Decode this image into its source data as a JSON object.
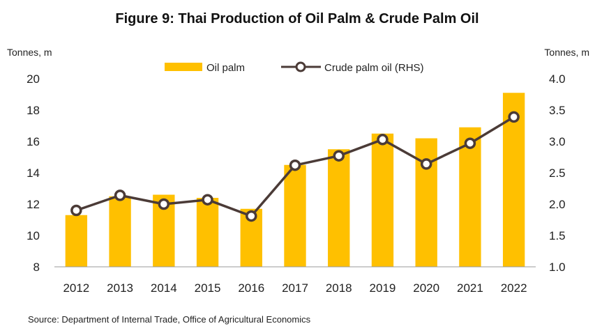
{
  "chart_data": {
    "type": "bar+line",
    "title": "Figure 9: Thai Production  of Oil Palm & Crude Palm Oil",
    "left_axis_label": "Tonnes, m",
    "right_axis_label": "Tonnes, m",
    "categories": [
      "2012",
      "2013",
      "2014",
      "2015",
      "2016",
      "2017",
      "2018",
      "2019",
      "2020",
      "2021",
      "2022"
    ],
    "series": [
      {
        "name": "Oil palm",
        "type": "bar",
        "axis": "left",
        "color": "#FFC000",
        "values": [
          11.3,
          12.5,
          12.6,
          12.4,
          11.7,
          14.5,
          15.5,
          16.5,
          16.2,
          16.9,
          19.1
        ]
      },
      {
        "name": "Crude palm oil (RHS)",
        "type": "line",
        "axis": "right",
        "color": "#4B3B37",
        "values": [
          1.9,
          2.14,
          2.0,
          2.07,
          1.81,
          2.62,
          2.77,
          3.03,
          2.64,
          2.97,
          3.39
        ]
      }
    ],
    "ylim_left": [
      8,
      20
    ],
    "yticks_left": [
      8,
      10,
      12,
      14,
      16,
      18,
      20
    ],
    "ylim_right": [
      1.0,
      4.0
    ],
    "yticks_right": [
      "1.0",
      "1.5",
      "2.0",
      "2.5",
      "3.0",
      "3.5",
      "4.0"
    ],
    "grid": false,
    "legend_position": "top-center",
    "source": "Source: Department of Internal Trade, Office of Agricultural Economics"
  }
}
